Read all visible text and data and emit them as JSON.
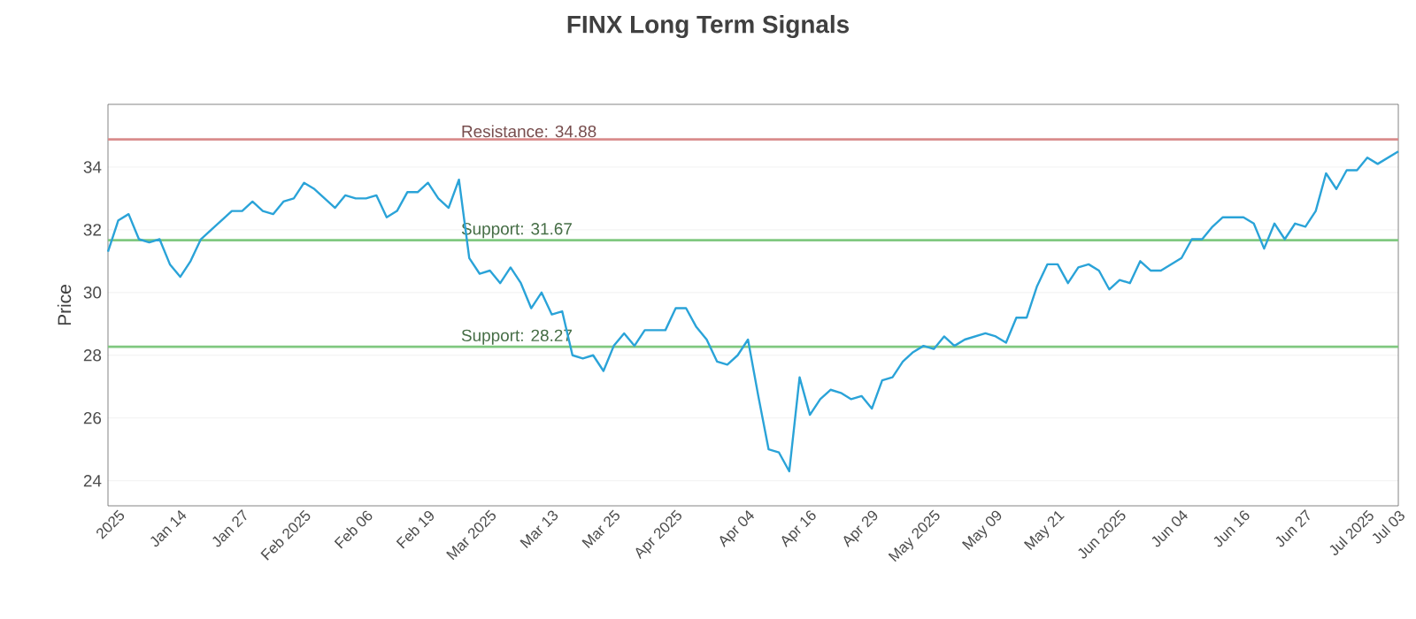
{
  "chart_data": {
    "type": "line",
    "title": "FINX Long Term Signals",
    "ylabel": "Price",
    "categories": [
      null,
      "2025",
      null,
      null,
      null,
      null,
      null,
      "Jan 14",
      null,
      null,
      null,
      null,
      null,
      "Jan 27",
      null,
      null,
      null,
      null,
      null,
      "Feb 2025",
      null,
      null,
      null,
      null,
      null,
      "Feb 06",
      null,
      null,
      null,
      null,
      null,
      "Feb 19",
      null,
      null,
      null,
      null,
      null,
      "Mar 2025",
      null,
      null,
      null,
      null,
      null,
      "Mar 13",
      null,
      null,
      null,
      null,
      null,
      "Mar 25",
      null,
      null,
      null,
      null,
      null,
      "Apr 2025",
      null,
      null,
      null,
      null,
      null,
      null,
      "Apr 04",
      null,
      null,
      null,
      null,
      null,
      "Apr 16",
      null,
      null,
      null,
      null,
      null,
      "Apr 29",
      null,
      null,
      null,
      null,
      null,
      "May 2025",
      null,
      null,
      null,
      null,
      null,
      "May 09",
      null,
      null,
      null,
      null,
      null,
      "May 21",
      null,
      null,
      null,
      null,
      null,
      "Jun 2025",
      null,
      null,
      null,
      null,
      null,
      "Jun 04",
      null,
      null,
      null,
      null,
      null,
      "Jun 16",
      null,
      null,
      null,
      null,
      null,
      "Jun 27",
      null,
      null,
      null,
      null,
      null,
      "Jul 2025",
      null,
      null,
      "Jul 03"
    ],
    "series": [
      {
        "color": "#2aa3d8",
        "values": [
          31.3,
          32.3,
          32.5,
          31.7,
          31.6,
          31.7,
          30.9,
          30.5,
          31.0,
          31.7,
          32.0,
          32.3,
          32.6,
          32.6,
          32.9,
          32.6,
          32.5,
          32.9,
          33.0,
          33.5,
          33.3,
          33.0,
          32.7,
          33.1,
          33.0,
          33.0,
          33.1,
          32.4,
          32.6,
          33.2,
          33.2,
          33.5,
          33.0,
          32.7,
          33.6,
          31.1,
          30.6,
          30.7,
          30.3,
          30.8,
          30.3,
          29.5,
          30.0,
          29.3,
          29.4,
          28.0,
          27.9,
          28.0,
          27.5,
          28.3,
          28.7,
          28.3,
          28.8,
          28.8,
          28.8,
          29.5,
          29.5,
          28.9,
          28.5,
          27.8,
          27.7,
          28.0,
          28.5,
          26.7,
          25.0,
          24.9,
          24.3,
          27.3,
          26.1,
          26.6,
          26.9,
          26.8,
          26.6,
          26.7,
          26.3,
          27.2,
          27.3,
          27.8,
          28.1,
          28.3,
          28.2,
          28.6,
          28.3,
          28.5,
          28.6,
          28.7,
          28.6,
          28.4,
          29.2,
          29.2,
          30.2,
          30.9,
          30.9,
          30.3,
          30.8,
          30.9,
          30.7,
          30.1,
          30.4,
          30.3,
          31.0,
          30.7,
          30.7,
          30.9,
          31.1,
          31.7,
          31.7,
          32.1,
          32.4,
          32.4,
          32.4,
          32.2,
          31.4,
          32.2,
          31.7,
          32.2,
          32.1,
          32.6,
          33.8,
          33.3,
          33.9,
          33.9,
          34.3,
          34.1,
          34.3,
          34.5
        ]
      }
    ],
    "ylim": [
      23.2,
      36
    ],
    "yticks": [
      24,
      26,
      28,
      30,
      32,
      34
    ],
    "grid": "y",
    "marker": "none",
    "line_style": "solid",
    "ref_lines": [
      {
        "axis": "y",
        "value": 34.88,
        "label": "Resistance: 34.88",
        "color": "#d98c8c"
      },
      {
        "axis": "y",
        "value": 31.67,
        "label": "Support: 31.67",
        "color": "#80c880"
      },
      {
        "axis": "y",
        "value": 28.27,
        "label": "Support: 28.27",
        "color": "#80c880"
      }
    ]
  }
}
